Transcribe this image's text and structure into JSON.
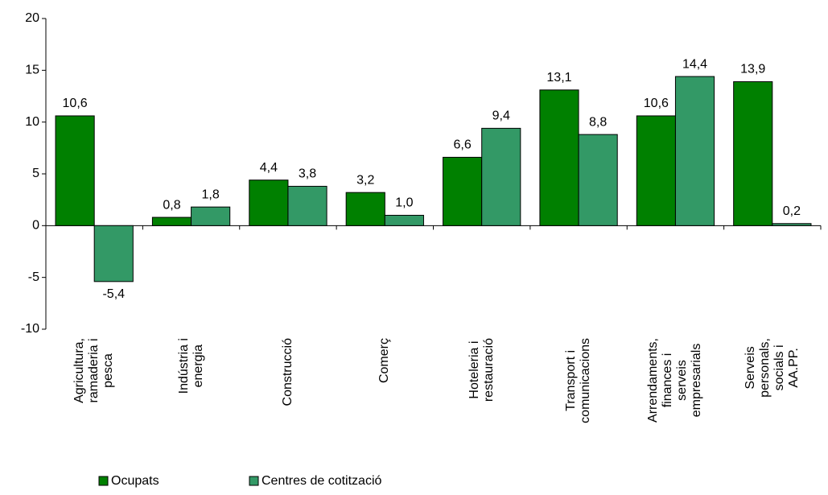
{
  "chart_data": {
    "type": "bar",
    "categories": [
      "Agricultura,\nramaderia i\npesca",
      "Indústria i\nenergia",
      "Construcció",
      "Comerç",
      "Hoteleria i\nrestauració",
      "Transport i\ncomunicacions",
      "Arrendaments,\nfinances i\nserveis\nempresarials",
      "Serveis\npersonals,\nsocials i\nAA.PP."
    ],
    "series": [
      {
        "name": "Ocupats",
        "color": "#008000",
        "values": [
          10.6,
          0.8,
          4.4,
          3.2,
          6.6,
          13.1,
          10.6,
          13.9
        ],
        "value_labels": [
          "10,6",
          "0,8",
          "4,4",
          "3,2",
          "6,6",
          "13,1",
          "10,6",
          "13,9"
        ]
      },
      {
        "name": "Centres de cotització",
        "color": "#339966",
        "values": [
          -5.4,
          1.8,
          3.8,
          1.0,
          9.4,
          8.8,
          14.4,
          0.2
        ],
        "value_labels": [
          "-5,4",
          "1,8",
          "3,8",
          "1,0",
          "9,4",
          "8,8",
          "14,4",
          "0,2"
        ]
      }
    ],
    "ylim": [
      -10,
      20
    ],
    "yticks": [
      -10,
      -5,
      0,
      5,
      10,
      15,
      20
    ],
    "legend": "bottom-left"
  }
}
